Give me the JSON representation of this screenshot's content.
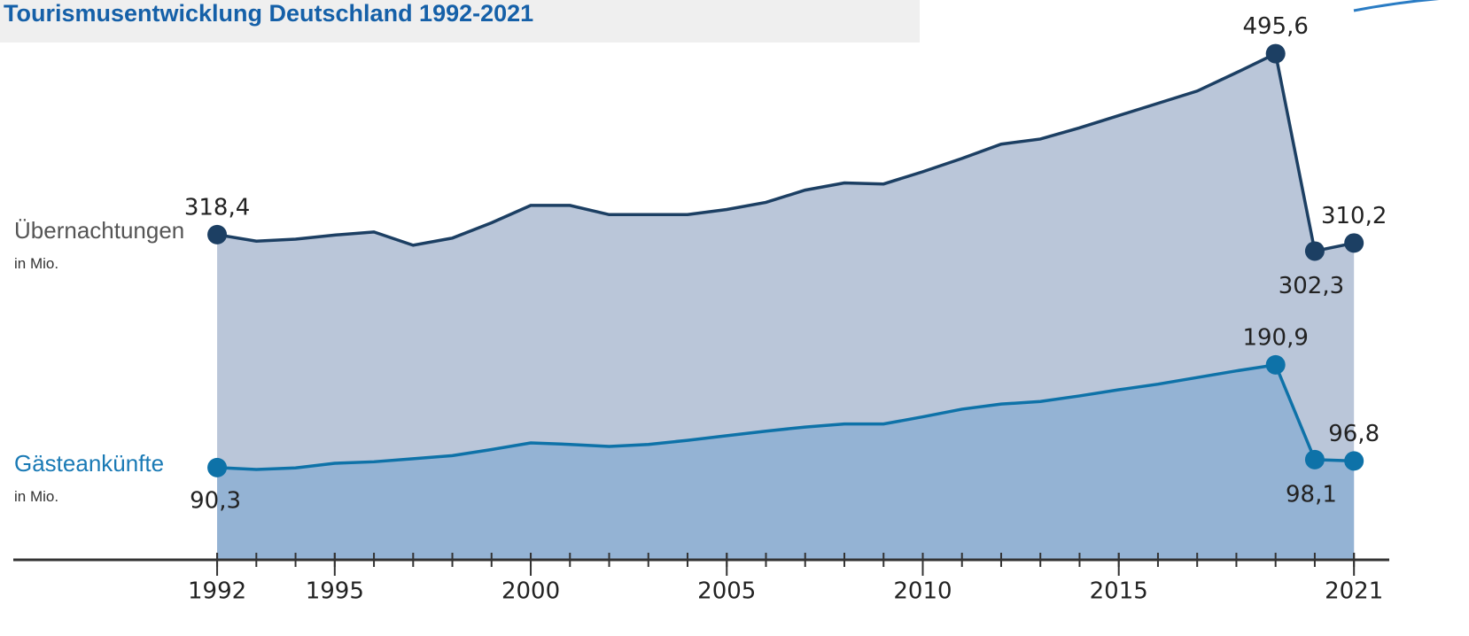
{
  "chart_data": {
    "type": "area",
    "title": "Tourismusentwicklung Deutschland 1992-2021",
    "x": [
      1992,
      1993,
      1994,
      1995,
      1996,
      1997,
      1998,
      1999,
      2000,
      2001,
      2002,
      2003,
      2004,
      2005,
      2006,
      2007,
      2008,
      2009,
      2010,
      2011,
      2012,
      2013,
      2014,
      2015,
      2016,
      2017,
      2018,
      2019,
      2020,
      2021
    ],
    "xlim": [
      1986.8,
      2021.9
    ],
    "xticks": [
      1992,
      1995,
      2000,
      2005,
      2010,
      2015,
      2021
    ],
    "ylim": [
      0,
      550
    ],
    "series": [
      {
        "name": "Übernachtungen",
        "unit": "in Mio.",
        "color": "#1c3f63",
        "fill": "#bac6d9",
        "values": [
          318.4,
          312,
          314,
          318,
          321,
          308,
          315,
          330,
          347,
          347,
          338,
          338,
          338,
          343,
          350,
          362,
          369,
          368,
          380,
          393,
          407,
          412,
          423,
          435,
          447,
          459,
          477,
          495.6,
          302.3,
          310.2
        ],
        "value_labels": [
          "318,4",
          null,
          null,
          null,
          null,
          null,
          null,
          null,
          null,
          null,
          null,
          null,
          null,
          null,
          null,
          null,
          null,
          null,
          null,
          null,
          null,
          null,
          null,
          null,
          null,
          null,
          null,
          "495,6",
          "302,3",
          "310,2"
        ]
      },
      {
        "name": "Gästeankünfte",
        "unit": "in Mio.",
        "color": "#0e72a8",
        "fill": "#94b3d4",
        "values": [
          90.3,
          88.5,
          90,
          94.5,
          96,
          99,
          102,
          108,
          114.5,
          113,
          111,
          113,
          117,
          121.5,
          126,
          130,
          133,
          133,
          140,
          147.5,
          152.5,
          155,
          160.5,
          166.5,
          172,
          178.5,
          185,
          190.9,
          98.1,
          96.8
        ],
        "value_labels": [
          "90,3",
          null,
          null,
          null,
          null,
          null,
          null,
          null,
          null,
          null,
          null,
          null,
          null,
          null,
          null,
          null,
          null,
          null,
          null,
          null,
          null,
          null,
          null,
          null,
          null,
          null,
          null,
          "190,9",
          "98,1",
          "96,8"
        ]
      }
    ]
  }
}
